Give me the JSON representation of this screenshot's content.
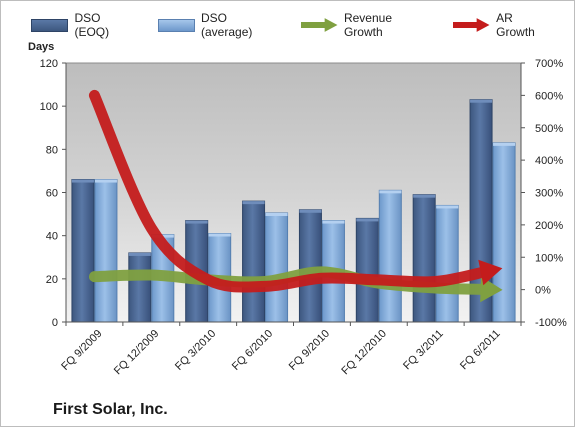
{
  "chart_data": {
    "type": "bar",
    "title": "First Solar, Inc.",
    "ylabel": "Days",
    "categories": [
      "FQ 9/2009",
      "FQ 12/2009",
      "FQ 3/2010",
      "FQ 6/2010",
      "FQ 9/2010",
      "FQ 12/2010",
      "FQ 3/2011",
      "FQ 6/2011"
    ],
    "series": [
      {
        "name": "DSO (EOQ)",
        "type": "bar",
        "axis": "left",
        "color": "#4a6591",
        "values": [
          66,
          32,
          47,
          56,
          52,
          48,
          59,
          103
        ]
      },
      {
        "name": "DSO (average)",
        "type": "bar",
        "axis": "left",
        "color": "#7ca6d6",
        "values": [
          66,
          40.5,
          41,
          50.5,
          47,
          61,
          54,
          83
        ]
      },
      {
        "name": "Revenue Growth",
        "type": "line",
        "axis": "right",
        "unit": "%",
        "color": "#7fa040",
        "values": [
          40,
          45,
          30,
          25,
          55,
          20,
          5,
          0
        ]
      },
      {
        "name": "AR Growth",
        "type": "line",
        "axis": "right",
        "unit": "%",
        "color": "#c41c1c",
        "values": [
          600,
          190,
          30,
          10,
          35,
          30,
          25,
          60
        ]
      }
    ],
    "ylim": [
      0,
      120
    ],
    "yticks": [
      0,
      20,
      40,
      60,
      80,
      100,
      120
    ],
    "y2lim": [
      -100,
      700
    ],
    "y2ticks": [
      "-100%",
      "0%",
      "100%",
      "200%",
      "300%",
      "400%",
      "500%",
      "600%",
      "700%"
    ],
    "grid": false,
    "legend_position": "top",
    "plot_background": "#c8c8c8"
  }
}
